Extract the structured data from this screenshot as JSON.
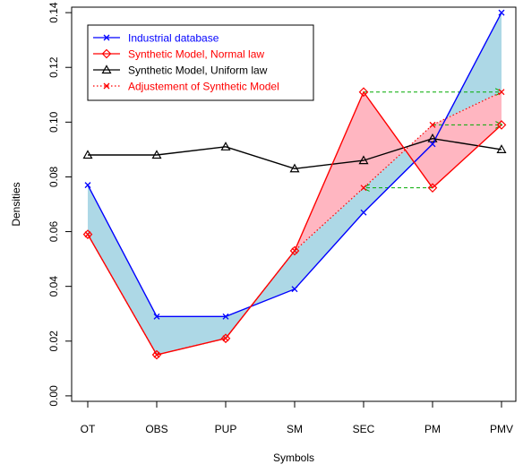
{
  "chart_data": {
    "type": "line",
    "xlabel": "Symbols",
    "ylabel": "Densities",
    "categories": [
      "OT",
      "OBS",
      "PUP",
      "SM",
      "SEC",
      "PM",
      "PMV"
    ],
    "ylim": [
      -0.002,
      0.142
    ],
    "yticks": [
      0.0,
      0.02,
      0.04,
      0.06,
      0.08,
      0.1,
      0.12,
      0.14
    ],
    "ytick_labels": [
      "0.00",
      "0.02",
      "0.04",
      "0.06",
      "0.08",
      "0.10",
      "0.12",
      "0.14"
    ],
    "grid": false,
    "legend_position": "top-left",
    "series": [
      {
        "name": "Industrial database",
        "color": "#0000ff",
        "marker": "x",
        "line": "solid",
        "values": [
          0.077,
          0.029,
          0.029,
          0.039,
          0.067,
          0.092,
          0.14
        ]
      },
      {
        "name": "Synthetic Model, Normal law",
        "color": "#ff0000",
        "marker": "diamond",
        "line": "solid",
        "values": [
          0.059,
          0.015,
          0.021,
          0.053,
          0.111,
          0.076,
          0.099
        ]
      },
      {
        "name": "Synthetic Model, Uniform law",
        "color": "#000000",
        "marker": "triangle",
        "line": "solid",
        "values": [
          0.088,
          0.088,
          0.091,
          0.083,
          0.086,
          0.094,
          0.09
        ]
      },
      {
        "name": "Adjustement of Synthetic Model",
        "color": "#ff0000",
        "marker": "x",
        "line": "dotted",
        "values": [
          0.059,
          0.015,
          0.021,
          0.053,
          0.076,
          0.099,
          0.111
        ]
      }
    ],
    "fills": [
      {
        "between": [
          "Industrial database",
          "Adjustement of Synthetic Model"
        ],
        "color": "#add8e6"
      },
      {
        "between": [
          "Synthetic Model, Normal law",
          "Adjustement of Synthetic Model"
        ],
        "color": "#ffb6c1"
      }
    ],
    "arrows": {
      "color": "#00aa00",
      "items": [
        {
          "from": [
            "SEC",
            0.111
          ],
          "to": [
            "PMV",
            0.111
          ]
        },
        {
          "from": [
            "PM",
            0.099
          ],
          "to": [
            "PMV",
            0.099
          ]
        },
        {
          "from": [
            "PM",
            0.076
          ],
          "to": [
            "SEC",
            0.076
          ]
        }
      ]
    }
  }
}
